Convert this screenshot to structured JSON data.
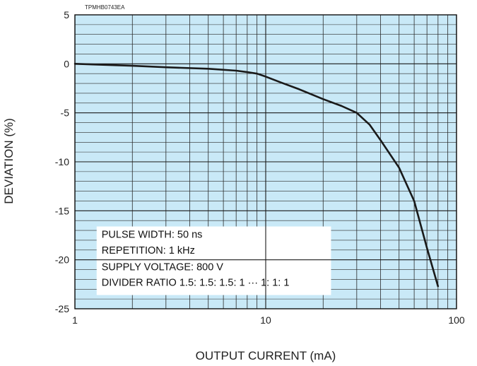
{
  "figure_code": "TPMHB0743EA",
  "chart_data": {
    "type": "line",
    "title": "",
    "xlabel": "OUTPUT CURRENT (mA)",
    "ylabel": "DEVIATION (%)",
    "xscale": "log",
    "xlim": [
      1,
      100
    ],
    "ylim": [
      -25,
      5
    ],
    "x_ticks": [
      1,
      10,
      100
    ],
    "x_tick_labels": [
      "1",
      "10",
      "100"
    ],
    "y_ticks": [
      5,
      0,
      -5,
      -10,
      -15,
      -20,
      -25
    ],
    "y_tick_labels": [
      "5",
      "0",
      "-5",
      "-10",
      "-15",
      "-20",
      "-25"
    ],
    "grid": true,
    "background_color": "#c9e9f7",
    "line_color": "#1a1a1a",
    "series": [
      {
        "x": [
          1,
          2,
          3,
          5,
          7,
          8,
          9,
          10,
          12,
          15,
          20,
          25,
          30,
          35,
          40,
          50,
          60,
          70,
          80
        ],
        "y": [
          0,
          -0.2,
          -0.35,
          -0.5,
          -0.7,
          -0.85,
          -1.0,
          -1.3,
          -1.9,
          -2.6,
          -3.6,
          -4.3,
          -5.0,
          -6.2,
          -7.8,
          -10.6,
          -14.0,
          -18.8,
          -22.7
        ]
      }
    ],
    "annotations": [
      "PULSE WIDTH: 50 ns",
      "REPETITION: 1 kHz",
      "SUPPLY VOLTAGE: 800 V",
      "DIVIDER RATIO  1.5: 1.5: 1.5: 1 ··· 1: 1: 1"
    ]
  }
}
